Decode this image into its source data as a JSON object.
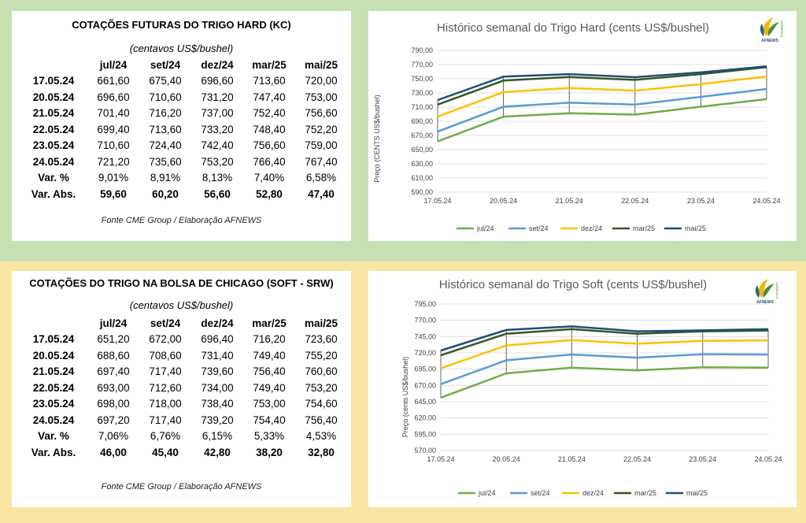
{
  "colors": {
    "top_band": "#c8dfb2",
    "bottom_band": "#f9e5a4",
    "series": [
      "#70ad47",
      "#5b9bd5",
      "#ffc000",
      "#375623",
      "#1f4e79"
    ]
  },
  "table_hard": {
    "title": "COTAÇÕES FUTURAS DO TRIGO HARD (KC)",
    "unit": "(centavos US$/bushel)",
    "columns": [
      "jul/24",
      "set/24",
      "dez/24",
      "mar/25",
      "mai/25"
    ],
    "rows": [
      {
        "label": "17.05.24",
        "values": [
          "661,60",
          "675,40",
          "696,60",
          "713,60",
          "720,00"
        ]
      },
      {
        "label": "20.05.24",
        "values": [
          "696,60",
          "710,60",
          "731,20",
          "747,40",
          "753,00"
        ]
      },
      {
        "label": "21.05.24",
        "values": [
          "701,40",
          "716,20",
          "737,00",
          "752,40",
          "756,60"
        ]
      },
      {
        "label": "22.05.24",
        "values": [
          "699,40",
          "713,60",
          "733,20",
          "748,40",
          "752,20"
        ]
      },
      {
        "label": "23.05.24",
        "values": [
          "710,60",
          "724,40",
          "742,40",
          "756,60",
          "759,00"
        ]
      },
      {
        "label": "24.05.24",
        "values": [
          "721,20",
          "735,60",
          "753,20",
          "766,40",
          "767,40"
        ]
      }
    ],
    "var_pct": {
      "label": "Var. %",
      "values": [
        "9,01%",
        "8,91%",
        "8,13%",
        "7,40%",
        "6,58%"
      ]
    },
    "var_abs": {
      "label": "Var. Abs.",
      "values": [
        "59,60",
        "60,20",
        "56,60",
        "52,80",
        "47,40"
      ]
    },
    "source": "Fonte CME Group / Elaboração AFNEWS"
  },
  "table_soft": {
    "title": "COTAÇÕES DO TRIGO NA BOLSA DE CHICAGO (SOFT - SRW)",
    "unit": "(centavos US$/bushel)",
    "columns": [
      "jul/24",
      "set/24",
      "dez/24",
      "mar/25",
      "mai/25"
    ],
    "rows": [
      {
        "label": "17.05.24",
        "values": [
          "651,20",
          "672,00",
          "696,40",
          "716,20",
          "723,60"
        ]
      },
      {
        "label": "20.05.24",
        "values": [
          "688,60",
          "708,60",
          "731,40",
          "749,40",
          "755,20"
        ]
      },
      {
        "label": "21.05.24",
        "values": [
          "697,40",
          "717,40",
          "739,60",
          "756,40",
          "760,60"
        ]
      },
      {
        "label": "22.05.24",
        "values": [
          "693,00",
          "712,60",
          "734,00",
          "749,40",
          "753,20"
        ]
      },
      {
        "label": "23.05.24",
        "values": [
          "698,00",
          "718,00",
          "738,40",
          "753,00",
          "754,60"
        ]
      },
      {
        "label": "24.05.24",
        "values": [
          "697,20",
          "717,40",
          "739,20",
          "754,40",
          "756,40"
        ]
      }
    ],
    "var_pct": {
      "label": "Var. %",
      "values": [
        "7,06%",
        "6,76%",
        "6,15%",
        "5,33%",
        "4,53%"
      ]
    },
    "var_abs": {
      "label": "Var. Abs.",
      "values": [
        "46,00",
        "45,40",
        "42,80",
        "38,20",
        "32,80"
      ]
    },
    "source": "Fonte CME Group / Elaboração AFNEWS"
  },
  "logo": {
    "text": "AFNEWS",
    "side_text": "AGRÍCOLA"
  },
  "chart_data": [
    {
      "type": "line",
      "title": "Histórico semanal do Trigo Hard (cents US$/bushel)",
      "xlabel": "",
      "ylabel": "Preço (CENTS US$/bushel)",
      "x": [
        "17.05.24",
        "20.05.24",
        "21.05.24",
        "22.05.24",
        "23.05.24",
        "24.05.24"
      ],
      "ylim": [
        590,
        790
      ],
      "ytick_step": 20,
      "ytick_labels": [
        "590,00",
        "610,00",
        "630,00",
        "650,00",
        "670,00",
        "690,00",
        "710,00",
        "730,00",
        "750,00",
        "770,00",
        "790,00"
      ],
      "grid": true,
      "legend_position": "bottom",
      "series": [
        {
          "name": "jul/24",
          "values": [
            661.6,
            696.6,
            701.4,
            699.4,
            710.6,
            721.2
          ]
        },
        {
          "name": "set/24",
          "values": [
            675.4,
            710.6,
            716.2,
            713.6,
            724.4,
            735.6
          ]
        },
        {
          "name": "dez/24",
          "values": [
            696.6,
            731.2,
            737.0,
            733.2,
            742.4,
            753.2
          ]
        },
        {
          "name": "mar/25",
          "values": [
            713.6,
            747.4,
            752.4,
            748.4,
            756.6,
            766.4
          ]
        },
        {
          "name": "mai/25",
          "values": [
            720.0,
            753.0,
            756.6,
            752.2,
            759.0,
            767.4
          ]
        }
      ]
    },
    {
      "type": "line",
      "title": "Histórico semanal do Trigo Soft (cents US$/bushel)",
      "xlabel": "",
      "ylabel": "Preço (cents US$/bushel)",
      "x": [
        "17.05.24",
        "20.05.24",
        "21.05.24",
        "22.05.24",
        "23.05.24",
        "24.05.24"
      ],
      "ylim": [
        570,
        795
      ],
      "ytick_step": 25,
      "ytick_labels": [
        "570,00",
        "595,00",
        "620,00",
        "645,00",
        "670,00",
        "695,00",
        "720,00",
        "745,00",
        "770,00",
        "795,00"
      ],
      "grid": true,
      "legend_position": "bottom",
      "series": [
        {
          "name": "jul/24",
          "values": [
            651.2,
            688.6,
            697.4,
            693.0,
            698.0,
            697.2
          ]
        },
        {
          "name": "set/24",
          "values": [
            672.0,
            708.6,
            717.4,
            712.6,
            718.0,
            717.4
          ]
        },
        {
          "name": "dez/24",
          "values": [
            696.4,
            731.4,
            739.6,
            734.0,
            738.4,
            739.2
          ]
        },
        {
          "name": "mar/25",
          "values": [
            716.2,
            749.4,
            756.4,
            749.4,
            753.0,
            754.4
          ]
        },
        {
          "name": "mai/25",
          "values": [
            723.6,
            755.2,
            760.6,
            753.2,
            754.6,
            756.4
          ]
        }
      ]
    }
  ]
}
